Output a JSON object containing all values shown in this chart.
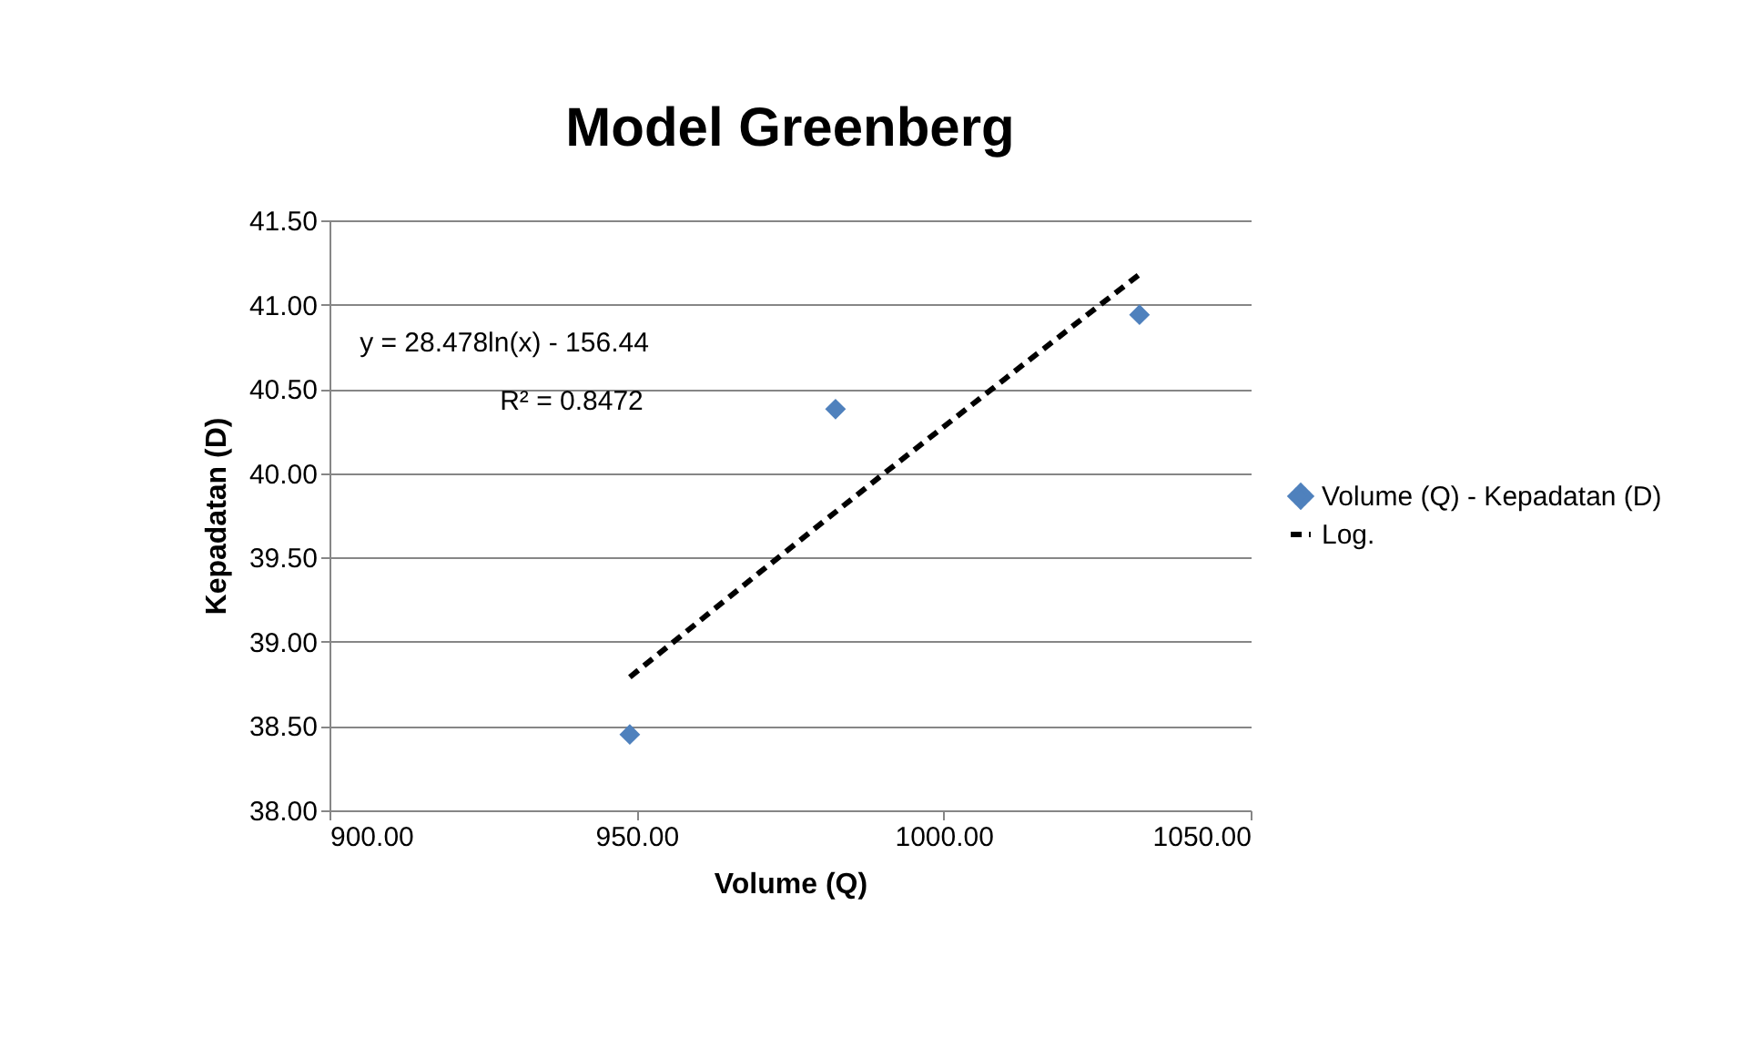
{
  "chart_data": {
    "type": "scatter",
    "title": "Model Greenberg",
    "xlabel": "Volume (Q)",
    "ylabel": "Kepadatan (D)",
    "x": [
      948.9,
      982.4,
      1031.9
    ],
    "series": [
      {
        "name": "Volume (Q) - Kepadatan (D)",
        "color": "#4f81bd",
        "marker": "diamond",
        "values": [
          38.45,
          40.38,
          40.94
        ]
      },
      {
        "name": "Log.",
        "type": "line",
        "color": "#000000",
        "line_style": "dashed",
        "x": [
          948.9,
          970,
          990,
          1010,
          1031.9
        ],
        "values": [
          38.79,
          39.41,
          39.99,
          40.56,
          41.18
        ]
      }
    ],
    "xlim": [
      900,
      1050
    ],
    "xticks": [
      {
        "value": 900,
        "label": "900.00"
      },
      {
        "value": 950,
        "label": "950.00"
      },
      {
        "value": 1000,
        "label": "1000.00"
      },
      {
        "value": 1050,
        "label": "1050.00"
      }
    ],
    "ylim": [
      38,
      41.5
    ],
    "yticks": [
      {
        "value": 38,
        "label": "38.00"
      },
      {
        "value": 38.5,
        "label": "38.50"
      },
      {
        "value": 39,
        "label": "39.00"
      },
      {
        "value": 39.5,
        "label": "39.50"
      },
      {
        "value": 40,
        "label": "40.00"
      },
      {
        "value": 40.5,
        "label": "40.50"
      },
      {
        "value": 41,
        "label": "41.00"
      },
      {
        "value": 41.5,
        "label": "41.50"
      }
    ],
    "grid": "y",
    "legend": "right",
    "annotations": [
      "y = 28.478ln(x) - 156.44",
      "R² = 0.8472"
    ]
  }
}
